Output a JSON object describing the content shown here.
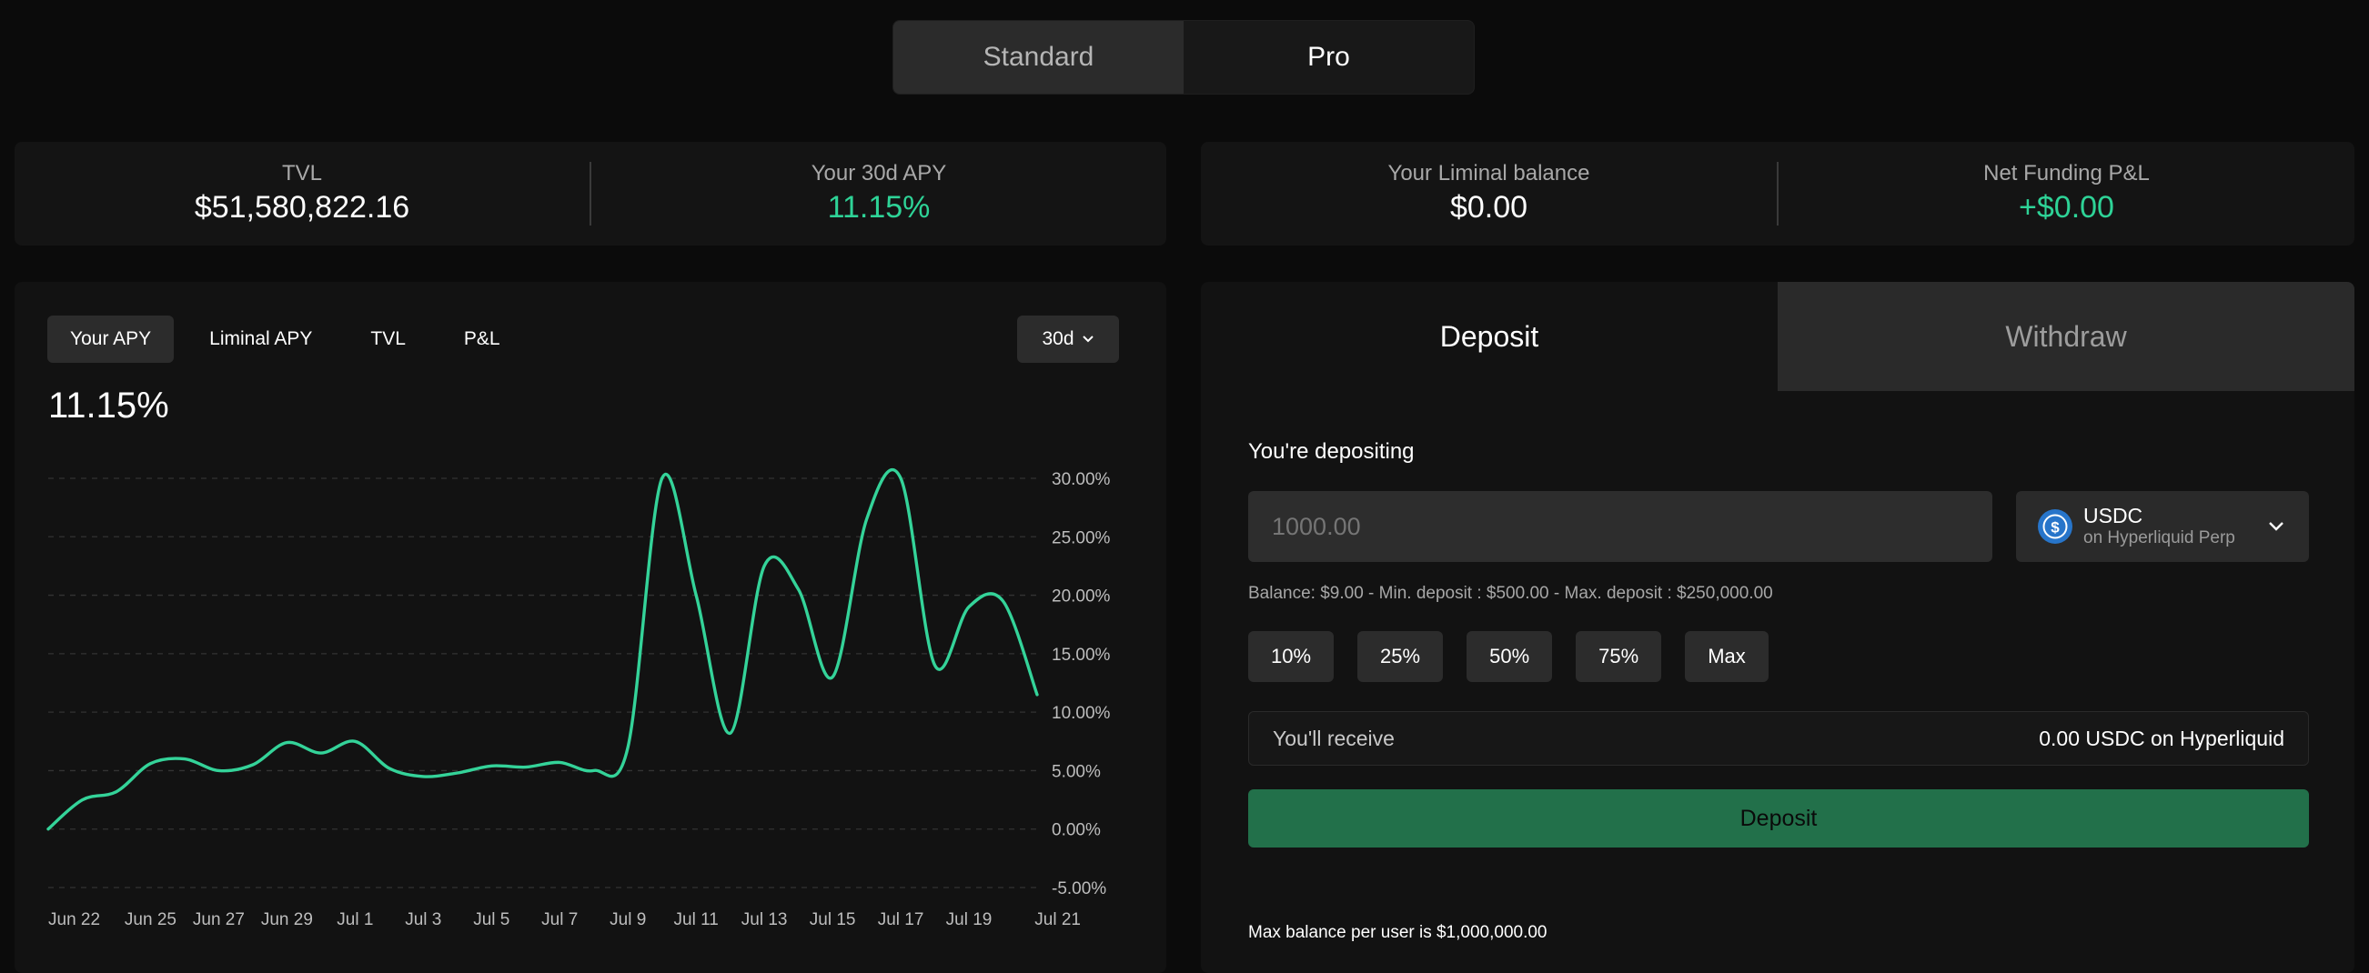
{
  "mode_toggle": {
    "standard": "Standard",
    "pro": "Pro",
    "active": "Pro"
  },
  "stats_left": {
    "tvl_label": "TVL",
    "tvl_value": "$51,580,822.16",
    "apy_label": "Your 30d APY",
    "apy_value": "11.15%"
  },
  "stats_right": {
    "balance_label": "Your Liminal balance",
    "balance_value": "$0.00",
    "pnl_label": "Net Funding P&L",
    "pnl_value": "+$0.00"
  },
  "colors": {
    "accent": "#2ed397",
    "deposit_button": "#22704a",
    "line": "#34d399"
  },
  "chart_panel": {
    "tabs": [
      "Your APY",
      "Liminal APY",
      "TVL",
      "P&L"
    ],
    "active_tab": "Your APY",
    "range": "30d",
    "current_value": "11.15%"
  },
  "chart_data": {
    "type": "line",
    "series": [
      {
        "values": [
          [
            "2023-06-22",
            0.0
          ],
          [
            "2023-06-23",
            2.5
          ],
          [
            "2023-06-24",
            3.2
          ],
          [
            "2023-06-25",
            5.6
          ],
          [
            "2023-06-26",
            6.0
          ],
          [
            "2023-06-27",
            5.0
          ],
          [
            "2023-06-28",
            5.5
          ],
          [
            "2023-06-29",
            7.4
          ],
          [
            "2023-06-30",
            6.5
          ],
          [
            "2023-07-01",
            7.5
          ],
          [
            "2023-07-02",
            5.2
          ],
          [
            "2023-07-03",
            4.5
          ],
          [
            "2023-07-04",
            4.8
          ],
          [
            "2023-07-05",
            5.4
          ],
          [
            "2023-07-06",
            5.3
          ],
          [
            "2023-07-07",
            5.7
          ],
          [
            "2023-07-08",
            5.0
          ],
          [
            "2023-07-09",
            7.0
          ],
          [
            "2023-07-10",
            30.0
          ],
          [
            "2023-07-11",
            20.0
          ],
          [
            "2023-07-12",
            8.2
          ],
          [
            "2023-07-13",
            22.5
          ],
          [
            "2023-07-14",
            20.5
          ],
          [
            "2023-07-15",
            13.0
          ],
          [
            "2023-07-16",
            26.5
          ],
          [
            "2023-07-17",
            30.0
          ],
          [
            "2023-07-18",
            14.0
          ],
          [
            "2023-07-19",
            19.0
          ],
          [
            "2023-07-20",
            19.5
          ],
          [
            "2023-07-21",
            11.5
          ]
        ]
      }
    ],
    "x_ticks": [
      "Jun 22",
      "Jun 25",
      "Jun 27",
      "Jun 29",
      "Jul 1",
      "Jul 3",
      "Jul 5",
      "Jul 7",
      "Jul 9",
      "Jul 11",
      "Jul 13",
      "Jul 15",
      "Jul 17",
      "Jul 19",
      "Jul 21"
    ],
    "y_ticks": [
      30,
      25,
      20,
      15,
      10,
      5,
      0,
      -5
    ],
    "y_tick_labels": [
      "30.00%",
      "25.00%",
      "20.00%",
      "15.00%",
      "10.00%",
      "5.00%",
      "0.00%",
      "-5.00%"
    ],
    "ylim": [
      -5,
      30
    ],
    "grid": "dashed horizontal"
  },
  "deposit_panel": {
    "tabs": [
      "Deposit",
      "Withdraw"
    ],
    "active_tab": "Deposit",
    "depositing_label": "You're depositing",
    "amount_placeholder": "1000.00",
    "token": {
      "name": "USDC",
      "network": "on Hyperliquid Perp",
      "icon": "usdc-icon"
    },
    "balance_line": "Balance: $9.00 - Min. deposit : $500.00 - Max. deposit : $250,000.00",
    "percent_buttons": [
      "10%",
      "25%",
      "50%",
      "75%",
      "Max"
    ],
    "receive_label": "You'll receive",
    "receive_value": "0.00 USDC on Hyperliquid",
    "deposit_button": "Deposit",
    "max_note": "Max balance per user is $1,000,000.00"
  }
}
